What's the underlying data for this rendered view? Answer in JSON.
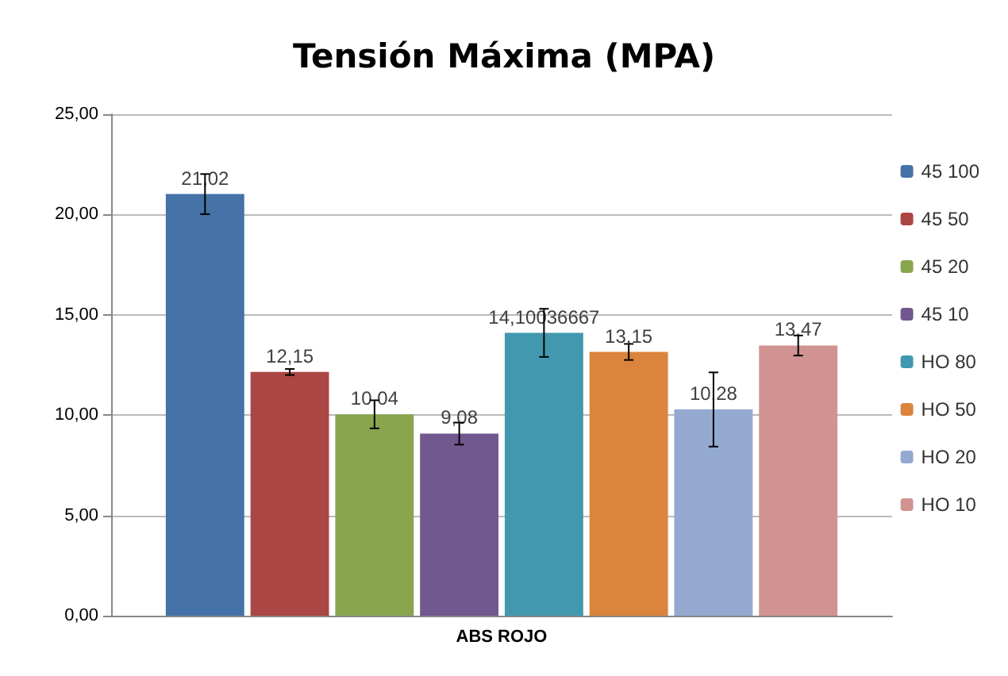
{
  "chart_data": {
    "type": "bar",
    "title": "Tensión Máxima (MPA)",
    "categories": [
      "ABS ROJO"
    ],
    "series": [
      {
        "name": "45 100",
        "color": "#4572a7",
        "values": [
          21.02
        ],
        "errors": [
          1.0
        ],
        "value_labels": [
          "21,02"
        ]
      },
      {
        "name": "45 50",
        "color": "#aa4643",
        "values": [
          12.15
        ],
        "errors": [
          0.15
        ],
        "value_labels": [
          "12,15"
        ]
      },
      {
        "name": "45 20",
        "color": "#89a54e",
        "values": [
          10.04
        ],
        "errors": [
          0.7
        ],
        "value_labels": [
          "10,04"
        ]
      },
      {
        "name": "45 10",
        "color": "#71588f",
        "values": [
          9.08
        ],
        "errors": [
          0.55
        ],
        "value_labels": [
          "9,08"
        ]
      },
      {
        "name": "HO 80",
        "color": "#4198af",
        "values": [
          14.10036667
        ],
        "errors": [
          1.2
        ],
        "value_labels": [
          "14,10036667"
        ]
      },
      {
        "name": "HO 50",
        "color": "#db843d",
        "values": [
          13.15
        ],
        "errors": [
          0.4
        ],
        "value_labels": [
          "13,15"
        ]
      },
      {
        "name": "HO 20",
        "color": "#93a9cf",
        "values": [
          10.28
        ],
        "errors": [
          1.85
        ],
        "value_labels": [
          "10,28"
        ]
      },
      {
        "name": "HO 10",
        "color": "#d19392",
        "values": [
          13.47
        ],
        "errors": [
          0.5
        ],
        "value_labels": [
          "13,47"
        ]
      }
    ],
    "ylim": [
      0,
      25
    ],
    "yticks": [
      {
        "value": 0,
        "label": "0,00"
      },
      {
        "value": 5,
        "label": "5,00"
      },
      {
        "value": 10,
        "label": "10,00"
      },
      {
        "value": 15,
        "label": "15,00"
      },
      {
        "value": 20,
        "label": "20,00"
      },
      {
        "value": 25,
        "label": "25,00"
      }
    ],
    "grid": true,
    "legend": "right"
  }
}
